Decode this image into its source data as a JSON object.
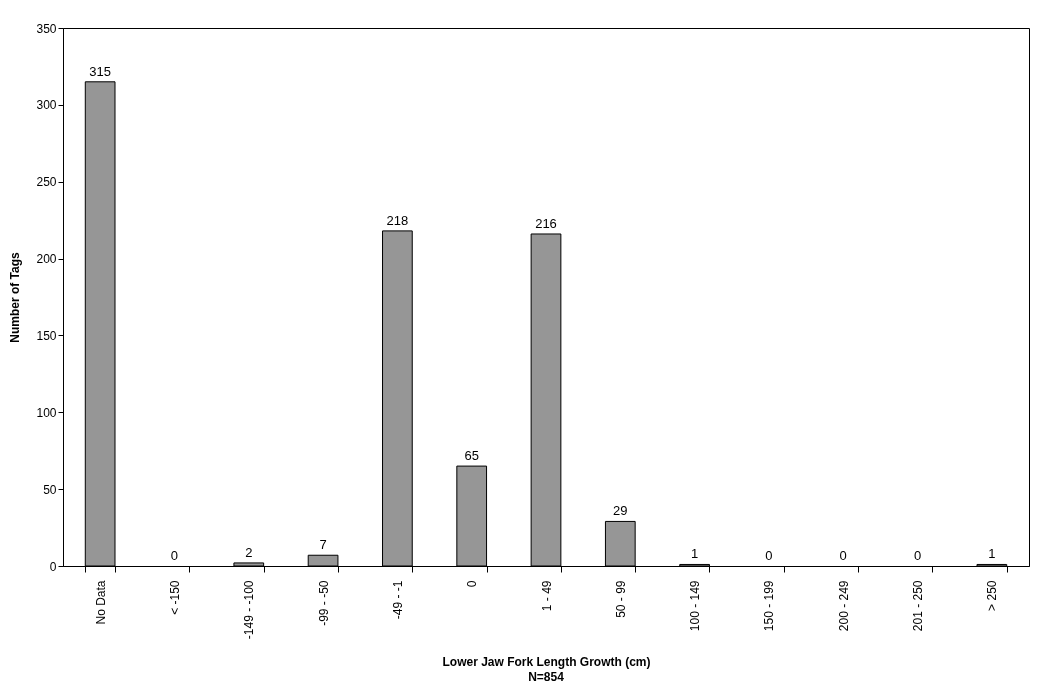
{
  "chart_data": {
    "type": "bar",
    "categories": [
      "No Data",
      "< -150",
      "-149 - -100",
      "-99 - -50",
      "-49 - -1",
      "0",
      "1 - 49",
      "50 - 99",
      "100 - 149",
      "150 - 199",
      "200 - 249",
      "201 - 250",
      "> 250"
    ],
    "values": [
      315,
      0,
      2,
      7,
      218,
      65,
      216,
      29,
      1,
      0,
      0,
      0,
      1
    ],
    "color": "#969696",
    "ylim": [
      0,
      350
    ],
    "yticks": [
      0,
      50,
      100,
      150,
      200,
      250,
      300,
      350
    ],
    "xlabel": "Lower Jaw Fork Length Growth (cm)",
    "ylabel": "Number of Tags",
    "annotations": [
      "N=854"
    ],
    "data_labels": true,
    "grid": false
  }
}
